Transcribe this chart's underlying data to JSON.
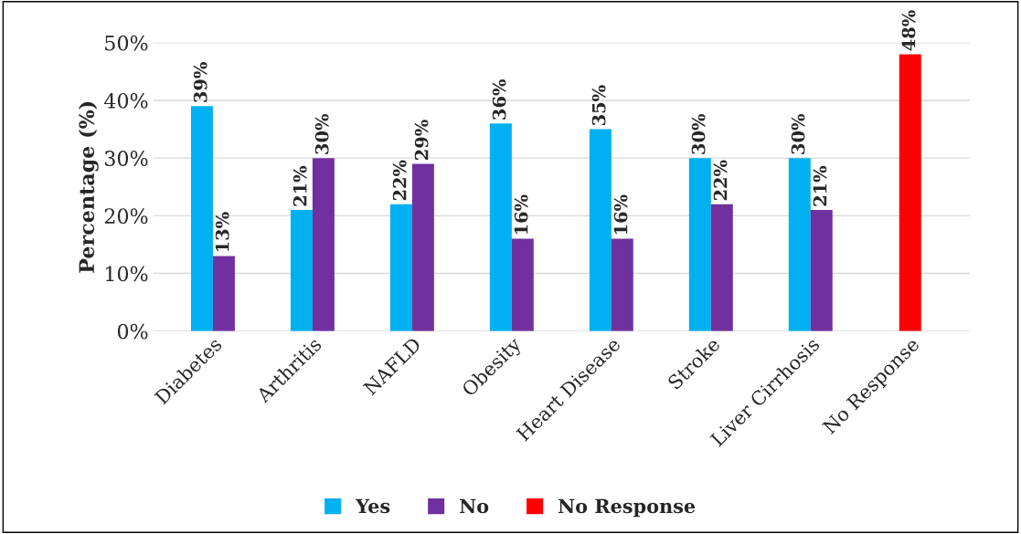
{
  "chart_data": {
    "type": "bar",
    "ylabel": "Percentage (%)",
    "categories": [
      "Diabetes",
      "Arthritis",
      "NAFLD",
      "Obesity",
      "Heart Disease",
      "Stroke",
      "Liver Cirrhosis",
      "No Response"
    ],
    "series": [
      {
        "name": "Yes",
        "color": "#00b0f0",
        "values": [
          39,
          21,
          22,
          36,
          35,
          30,
          30,
          null
        ],
        "value_labels": [
          "39%",
          "21%",
          "22%",
          "36%",
          "35%",
          "30%",
          "30%",
          null
        ]
      },
      {
        "name": "No",
        "color": "#7030a0",
        "values": [
          13,
          30,
          29,
          16,
          16,
          22,
          21,
          null
        ],
        "value_labels": [
          "13%",
          "30%",
          "29%",
          "16%",
          "16%",
          "22%",
          "21%",
          null
        ]
      },
      {
        "name": "No Response",
        "color": "#ff0000",
        "values": [
          null,
          null,
          null,
          null,
          null,
          null,
          null,
          48
        ],
        "value_labels": [
          null,
          null,
          null,
          null,
          null,
          null,
          null,
          "48%"
        ]
      }
    ],
    "ylim": [
      0,
      50
    ],
    "yticks": [
      {
        "value": 0,
        "label": "0%"
      },
      {
        "value": 10,
        "label": "10%"
      },
      {
        "value": 20,
        "label": "20%"
      },
      {
        "value": 30,
        "label": "30%"
      },
      {
        "value": 40,
        "label": "40%"
      },
      {
        "value": 50,
        "label": "50%"
      }
    ],
    "grid": "y",
    "legend": "bottom"
  }
}
